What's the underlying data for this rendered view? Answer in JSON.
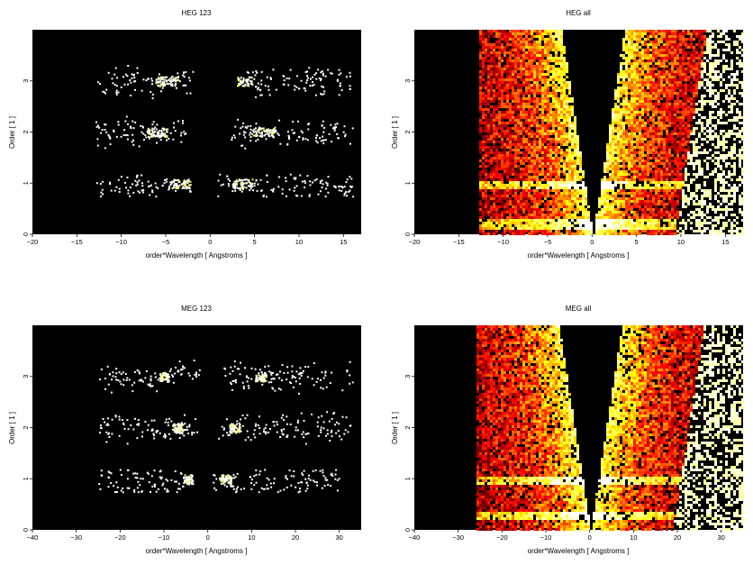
{
  "chart_data": [
    {
      "id": "heg123",
      "type": "heatmap",
      "title": "HEG 123",
      "xlabel": "order*Wavelength [ Angstroms ]",
      "ylabel": "Order [ 1 ]",
      "xlim": [
        -20,
        17
      ],
      "ylim": [
        0,
        4
      ],
      "xticks": [
        -20,
        -15,
        -10,
        -5,
        0,
        5,
        10,
        15
      ],
      "yticks": [
        0,
        1,
        2,
        3
      ],
      "density": "sparse",
      "colormap": "hot",
      "bands": [
        {
          "order": 1,
          "x_start": -13,
          "x_end": 16,
          "gap": [
            -2.2,
            0.8
          ],
          "hotspots": [
            -3.3,
            3.5
          ]
        },
        {
          "order": 2,
          "x_start": -13,
          "x_end": 16,
          "gap": [
            -2.2,
            2.0
          ],
          "hotspots": [
            -6,
            6
          ]
        },
        {
          "order": 3,
          "x_start": -13,
          "x_end": 16,
          "gap": [
            -2.0,
            3.0
          ],
          "hotspots": [
            -5,
            3.5
          ]
        }
      ]
    },
    {
      "id": "hegall",
      "type": "heatmap",
      "title": "HEG all",
      "xlabel": "order*Wavelength [ Angstroms ]",
      "ylabel": "Order [ 1 ]",
      "xlim": [
        -20,
        17
      ],
      "ylim": [
        0,
        4
      ],
      "xticks": [
        -20,
        -15,
        -10,
        -5,
        0,
        5,
        10,
        15
      ],
      "yticks": [
        0,
        1,
        2,
        3
      ],
      "density": "dense",
      "colormap": "hot",
      "data_x_range": [
        -13,
        17
      ],
      "wedge_center": 0,
      "hot_rows": [
        0.22,
        1.0
      ]
    },
    {
      "id": "meg123",
      "type": "heatmap",
      "title": "MEG 123",
      "xlabel": "order*Wavelength [ Angstroms ]",
      "ylabel": "Order [ 1 ]",
      "xlim": [
        -40,
        35
      ],
      "ylim": [
        0,
        4
      ],
      "xticks": [
        -40,
        -30,
        -20,
        -10,
        0,
        10,
        20,
        30
      ],
      "yticks": [
        0,
        1,
        2,
        3
      ],
      "density": "sparse",
      "colormap": "hot",
      "bands": [
        {
          "order": 1,
          "x_start": -25,
          "x_end": 30,
          "gap": [
            -3.5,
            0.8
          ],
          "hotspots": [
            -4.5,
            4.0
          ]
        },
        {
          "order": 2,
          "x_start": -25,
          "x_end": 33,
          "gap": [
            -2.5,
            2.0
          ],
          "hotspots": [
            -7,
            6
          ]
        },
        {
          "order": 3,
          "x_start": -25,
          "x_end": 33,
          "gap": [
            -2.0,
            3.5
          ],
          "hotspots": [
            -10,
            12
          ]
        }
      ]
    },
    {
      "id": "megall",
      "type": "heatmap",
      "title": "MEG all",
      "xlabel": "order*Wavelength [ Angstroms ]",
      "ylabel": "Order [ 1 ]",
      "xlim": [
        -40,
        35
      ],
      "ylim": [
        0,
        4
      ],
      "xticks": [
        -40,
        -30,
        -20,
        -10,
        0,
        10,
        20,
        30
      ],
      "yticks": [
        0,
        1,
        2,
        3
      ],
      "density": "dense",
      "colormap": "hot",
      "data_x_range": [
        -26,
        35
      ],
      "wedge_center": 0,
      "hot_rows": [
        0.3,
        1.0
      ]
    }
  ]
}
